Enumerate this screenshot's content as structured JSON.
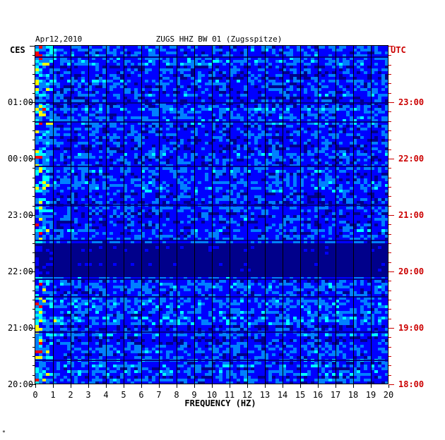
{
  "chart_data": {
    "type": "heatmap",
    "header": {
      "date": "Apr12,2010",
      "station": "ZUGS HHZ BW 01 (Zugsspitze)"
    },
    "left_axis_title": "CES",
    "right_axis_title": "UTC",
    "xlabel": "FREQUENCY (HZ)",
    "x_ticks": [
      0,
      1,
      2,
      3,
      4,
      5,
      6,
      7,
      8,
      9,
      10,
      11,
      12,
      13,
      14,
      15,
      16,
      17,
      18,
      19,
      20
    ],
    "xlim": [
      0,
      20
    ],
    "left_time_labels": [
      "01:00",
      "00:00",
      "23:00",
      "22:00",
      "21:00",
      "20:00"
    ],
    "right_time_labels": [
      "23:00",
      "22:00",
      "21:00",
      "20:00",
      "19:00",
      "18:00"
    ],
    "time_span_hours": 6,
    "colormap": [
      "#00008b",
      "#0000ff",
      "#0080ff",
      "#00ffff",
      "#ffff00",
      "#ff0000"
    ],
    "colors": {
      "left_labels": "#000000",
      "right_labels": "#cc0000",
      "grid": "#000000"
    }
  },
  "footer_mark": "*"
}
